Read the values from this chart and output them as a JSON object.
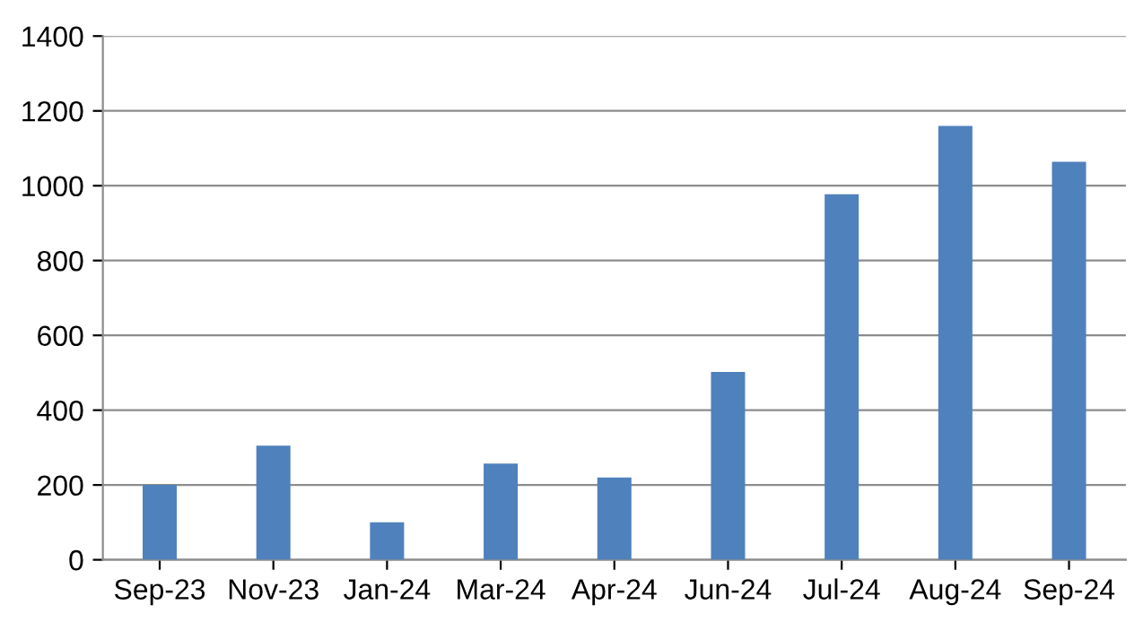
{
  "chart_data": {
    "type": "bar",
    "categories": [
      "Sep-23",
      "Nov-23",
      "Jan-24",
      "Mar-24",
      "Apr-24",
      "Jun-24",
      "Jul-24",
      "Aug-24",
      "Sep-24"
    ],
    "values": [
      200,
      305,
      100,
      257,
      220,
      502,
      977,
      1160,
      1064
    ],
    "color": "#4f81bd",
    "ylim": [
      0,
      1400
    ],
    "yticks": [
      0,
      200,
      400,
      600,
      800,
      1000,
      1200,
      1400
    ],
    "grid": "y",
    "legend": false
  }
}
